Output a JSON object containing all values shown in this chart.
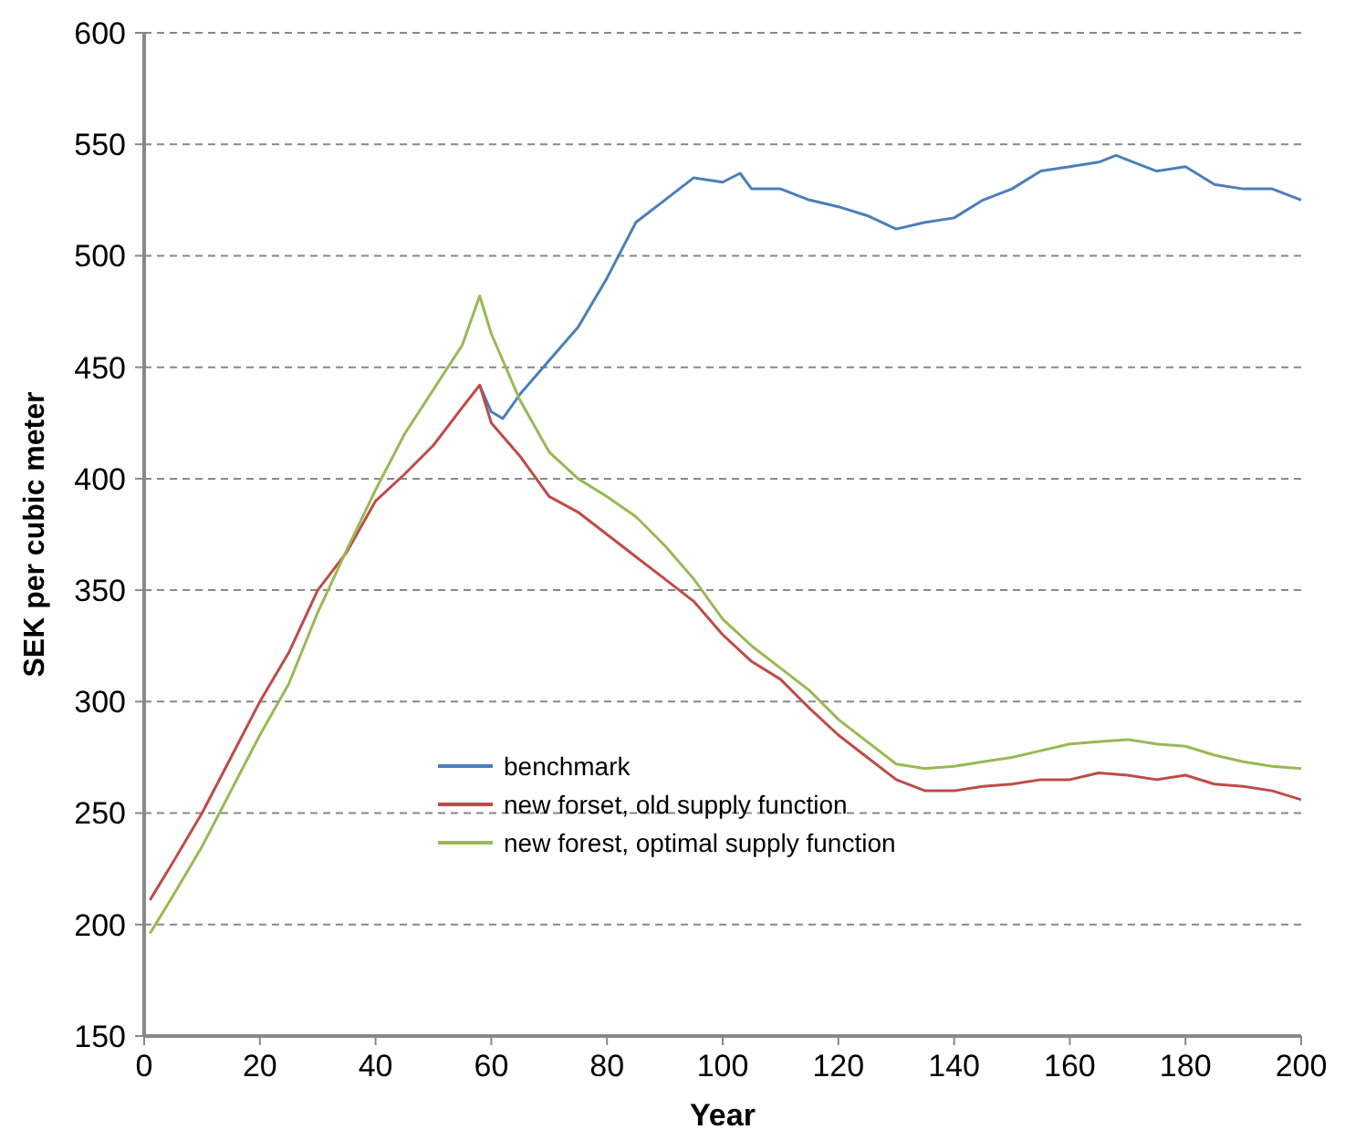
{
  "chart_data": {
    "type": "line",
    "xlabel": "Year",
    "ylabel": "SEK per cubic meter",
    "xlim": [
      0,
      200
    ],
    "xticks": [
      0,
      20,
      40,
      60,
      80,
      100,
      120,
      140,
      160,
      180,
      200
    ],
    "ylim": [
      150,
      600
    ],
    "yticks": [
      150,
      200,
      250,
      300,
      350,
      400,
      450,
      500,
      550,
      600
    ],
    "grid": "y",
    "legend": "bottom",
    "line_style": "solid",
    "marker": "none",
    "series": [
      {
        "name": "benchmark",
        "color": "#4a7ebb",
        "x": [
          58,
          60,
          62,
          65,
          70,
          75,
          80,
          85,
          90,
          95,
          100,
          103,
          105,
          110,
          115,
          120,
          125,
          130,
          135,
          140,
          145,
          150,
          155,
          160,
          165,
          168,
          170,
          175,
          180,
          185,
          190,
          195,
          200
        ],
        "values": [
          442,
          430,
          427,
          438,
          453,
          468,
          490,
          515,
          525,
          535,
          533,
          537,
          530,
          530,
          525,
          522,
          518,
          512,
          515,
          517,
          525,
          530,
          538,
          540,
          542,
          545,
          543,
          538,
          540,
          532,
          530,
          530,
          525
        ]
      },
      {
        "name": "new forset, old supply function",
        "color": "#be4b48",
        "x": [
          1,
          5,
          10,
          15,
          20,
          25,
          30,
          35,
          40,
          45,
          50,
          55,
          58,
          60,
          65,
          70,
          75,
          80,
          85,
          90,
          95,
          100,
          105,
          110,
          115,
          120,
          125,
          130,
          135,
          140,
          145,
          150,
          155,
          160,
          165,
          170,
          175,
          180,
          185,
          190,
          195,
          200
        ],
        "values": [
          211,
          228,
          250,
          275,
          300,
          322,
          350,
          367,
          390,
          402,
          415,
          432,
          442,
          425,
          410,
          392,
          385,
          375,
          365,
          355,
          345,
          330,
          318,
          310,
          297,
          285,
          275,
          265,
          260,
          260,
          262,
          263,
          265,
          265,
          268,
          267,
          265,
          267,
          263,
          262,
          260,
          256
        ]
      },
      {
        "name": "new forest, optimal supply function",
        "color": "#98b954",
        "x": [
          1,
          5,
          10,
          15,
          20,
          25,
          30,
          35,
          40,
          45,
          50,
          55,
          58,
          60,
          65,
          70,
          75,
          80,
          85,
          90,
          95,
          100,
          105,
          110,
          115,
          120,
          125,
          130,
          135,
          140,
          145,
          150,
          155,
          160,
          165,
          170,
          175,
          180,
          185,
          190,
          195,
          200
        ],
        "values": [
          196,
          213,
          235,
          260,
          285,
          308,
          340,
          368,
          395,
          420,
          440,
          460,
          482,
          465,
          435,
          412,
          400,
          392,
          383,
          370,
          355,
          337,
          325,
          315,
          305,
          292,
          282,
          272,
          270,
          271,
          273,
          275,
          278,
          281,
          282,
          283,
          281,
          280,
          276,
          273,
          271,
          270
        ]
      }
    ]
  }
}
